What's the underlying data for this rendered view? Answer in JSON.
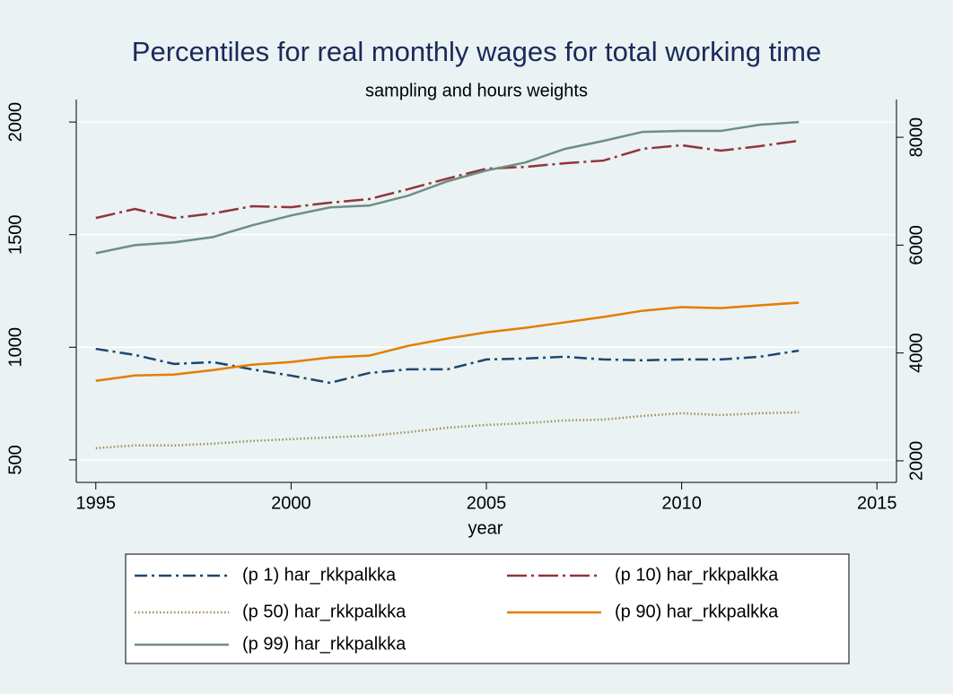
{
  "chart_data": {
    "type": "line",
    "title": "Percentiles for real monthly wages for total working time",
    "subtitle": "sampling and hours weights",
    "x_label": "year",
    "x": [
      1995,
      1996,
      1997,
      1998,
      1999,
      2000,
      2001,
      2002,
      2003,
      2004,
      2005,
      2006,
      2007,
      2008,
      2009,
      2010,
      2011,
      2012,
      2013
    ],
    "xlim": [
      1994.5,
      2015.5
    ],
    "xticks": [
      1995,
      2000,
      2005,
      2010,
      2015
    ],
    "ylim": [
      400,
      2100
    ],
    "yticks": [
      500,
      1000,
      1500,
      2000
    ],
    "y2lim": [
      1600,
      8700
    ],
    "y2ticks": [
      2000,
      4000,
      6000,
      8000
    ],
    "grid": true,
    "series": [
      {
        "name": "(p 1) har_rkkpalkka",
        "color": "#1a476f",
        "style": "dash-dot",
        "axis": "y",
        "values": [
          993,
          966,
          926,
          934,
          902,
          874,
          842,
          886,
          902,
          902,
          946,
          950,
          958,
          946,
          942,
          946,
          946,
          958,
          985
        ]
      },
      {
        "name": "(p 10) har_rkkpalkka",
        "color": "#90353b",
        "style": "long-dash-dot",
        "axis": "y",
        "values": [
          1574,
          1614,
          1574,
          1594,
          1626,
          1622,
          1642,
          1658,
          1702,
          1749,
          1793,
          1801,
          1817,
          1829,
          1881,
          1897,
          1873,
          1893,
          1917
        ]
      },
      {
        "name": "(p 50) har_rkkpalkka",
        "color": "#a08a5a",
        "style": "dot",
        "axis": "y",
        "values": [
          552,
          564,
          564,
          572,
          584,
          592,
          600,
          607,
          623,
          643,
          655,
          663,
          675,
          679,
          695,
          707,
          699,
          707,
          711
        ]
      },
      {
        "name": "(p 90) har_rkkpalkka",
        "color": "#e37e00",
        "style": "solid",
        "axis": "y2",
        "values": [
          3483,
          3583,
          3600,
          3683,
          3783,
          3833,
          3917,
          3950,
          4133,
          4267,
          4383,
          4467,
          4567,
          4667,
          4783,
          4850,
          4833,
          4883,
          4933
        ]
      },
      {
        "name": "(p 99) har_rkkpalkka",
        "color": "#6e8e84",
        "style": "solid",
        "axis": "y2",
        "values": [
          5850,
          6000,
          6050,
          6150,
          6367,
          6550,
          6700,
          6733,
          6917,
          7183,
          7383,
          7533,
          7783,
          7933,
          8100,
          8117,
          8117,
          8233,
          8283
        ]
      }
    ]
  }
}
